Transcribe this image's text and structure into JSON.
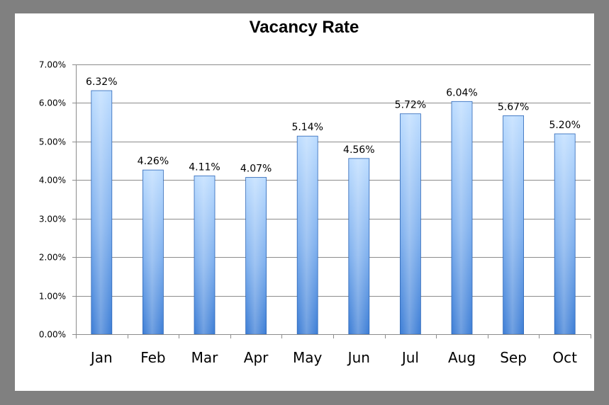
{
  "chart_data": {
    "type": "bar",
    "title": "Vacancy Rate",
    "xlabel": "",
    "ylabel": "",
    "categories": [
      "Jan",
      "Feb",
      "Mar",
      "Apr",
      "May",
      "Jun",
      "Jul",
      "Aug",
      "Sep",
      "Oct"
    ],
    "values": [
      6.32,
      4.26,
      4.11,
      4.07,
      5.14,
      4.56,
      5.72,
      6.04,
      5.67,
      5.2
    ],
    "data_labels": [
      "6.32%",
      "4.26%",
      "4.11%",
      "4.07%",
      "5.14%",
      "4.56%",
      "5.72%",
      "6.04%",
      "5.67%",
      "5.20%"
    ],
    "ylim": [
      0,
      7
    ],
    "yticks": [
      0,
      1,
      2,
      3,
      4,
      5,
      6,
      7
    ],
    "ytick_labels": [
      "0.00%",
      "1.00%",
      "2.00%",
      "3.00%",
      "4.00%",
      "5.00%",
      "6.00%",
      "7.00%"
    ],
    "grid": true,
    "legend": "none",
    "colors": {
      "bar_light": "#bcdcff",
      "bar_dark": "#3f7fd6",
      "bar_edge": "#2f68b8",
      "frame": "#808080",
      "background": "#ffffff"
    }
  }
}
